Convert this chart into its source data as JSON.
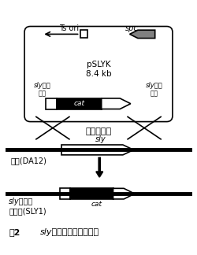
{
  "title_fig": "図2",
  "title_main": "sly遺伝子破壊株の作製",
  "bg_color": "#ffffff",
  "plasmid_label": "pSLYK\n8.4 kb",
  "ts_ori": "Ts ori",
  "spc": "spc",
  "sly_upstream": "sly上流\n領域",
  "sly_downstream": "sly下流\n領域",
  "cat_label": "cat",
  "homologous_recomb": "相同組換え",
  "parent_strain": "親株(DA12)",
  "sly_label1": "sly",
  "sly_disruptant_line1": "sly遺伝子",
  "sly_disruptant_line2": "破壊株(SLY1)",
  "cat_label2": "cat"
}
